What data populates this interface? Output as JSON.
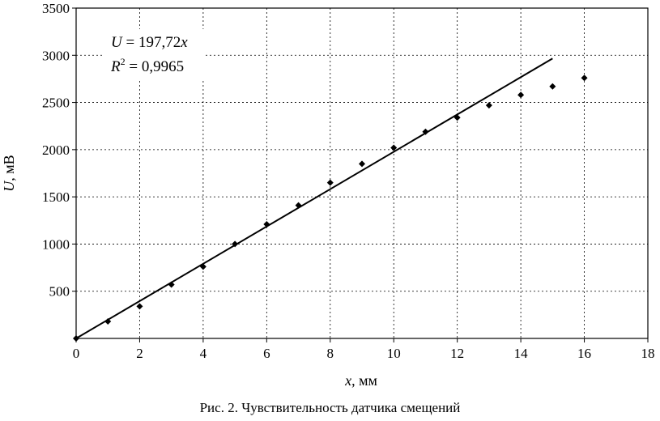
{
  "chart_data": {
    "type": "scatter",
    "ylabel_symbol": "U",
    "ylabel_unit": ", мВ",
    "xlabel_symbol": "x",
    "xlabel_unit": ", мм",
    "xlim": [
      0,
      18
    ],
    "ylim": [
      0,
      3500
    ],
    "x_ticks": [
      0,
      2,
      4,
      6,
      8,
      10,
      12,
      14,
      16,
      18
    ],
    "y_ticks": [
      500,
      1000,
      1500,
      2000,
      2500,
      3000,
      3500
    ],
    "grid": true,
    "series": [
      {
        "points": [
          {
            "x": 0,
            "y": 0
          },
          {
            "x": 1,
            "y": 180
          },
          {
            "x": 2,
            "y": 340
          },
          {
            "x": 3,
            "y": 570
          },
          {
            "x": 4,
            "y": 760
          },
          {
            "x": 5,
            "y": 1000
          },
          {
            "x": 6,
            "y": 1210
          },
          {
            "x": 7,
            "y": 1410
          },
          {
            "x": 8,
            "y": 1650
          },
          {
            "x": 9,
            "y": 1850
          },
          {
            "x": 10,
            "y": 2020
          },
          {
            "x": 11,
            "y": 2190
          },
          {
            "x": 12,
            "y": 2340
          },
          {
            "x": 13,
            "y": 2470
          },
          {
            "x": 14,
            "y": 2580
          },
          {
            "x": 15,
            "y": 2670
          },
          {
            "x": 16,
            "y": 2760
          }
        ]
      }
    ],
    "trendline": {
      "slope": 197.72,
      "x_range": [
        0,
        15
      ]
    },
    "annotation": {
      "eq_lhs": "U",
      "eq_rhs": " = 197,72",
      "eq_var": "x",
      "r2_base": "R",
      "r2_exp": "2",
      "r2_value": " = 0,9965"
    }
  },
  "caption": "Рис. 2. Чувствительность датчика смещений"
}
